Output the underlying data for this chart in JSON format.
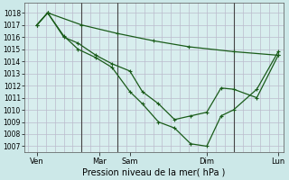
{
  "background_color": "#cce8e8",
  "plot_bg_color": "#d8eeee",
  "grid_color": "#bbbbcc",
  "line_color": "#1a5c1a",
  "marker_color": "#1a5c1a",
  "vline_color": "#444444",
  "ylim_min": 1006.5,
  "ylim_max": 1018.8,
  "yticks": [
    1007,
    1008,
    1009,
    1010,
    1011,
    1012,
    1013,
    1014,
    1015,
    1016,
    1017,
    1018
  ],
  "ytick_fontsize": 5.5,
  "xlabel": "Pression niveau de la mer( hPa )",
  "xlabel_fontsize": 7,
  "xlim_min": -0.1,
  "xlim_max": 7.15,
  "xtick_positions": [
    0.25,
    2.0,
    2.85,
    5.0,
    7.0
  ],
  "xtick_labels": [
    "Ven",
    "Mar",
    "Sam",
    "Dim",
    "Lun"
  ],
  "xtick_fontsize": 6,
  "vlines": [
    1.5,
    2.5,
    5.75
  ],
  "series": [
    {
      "x": [
        0.25,
        0.55,
        1.0,
        1.4,
        1.9,
        2.35,
        2.85,
        3.2,
        3.65,
        4.1,
        4.55,
        5.0,
        5.4,
        5.75,
        6.4,
        7.0
      ],
      "y": [
        1017.0,
        1018.0,
        1016.0,
        1015.5,
        1014.5,
        1013.8,
        1013.2,
        1011.5,
        1010.5,
        1009.2,
        1009.5,
        1009.8,
        1011.8,
        1011.7,
        1011.0,
        1014.5
      ]
    },
    {
      "x": [
        0.25,
        0.55,
        1.0,
        1.4,
        1.9,
        2.35,
        2.85,
        3.2,
        3.65,
        4.1,
        4.55,
        5.0,
        5.4,
        5.75,
        6.4,
        7.0
      ],
      "y": [
        1017.0,
        1018.0,
        1016.1,
        1015.0,
        1014.3,
        1013.5,
        1011.5,
        1010.5,
        1009.0,
        1008.5,
        1007.2,
        1007.0,
        1009.5,
        1010.0,
        1011.7,
        1014.8
      ]
    },
    {
      "x": [
        0.25,
        0.55,
        1.5,
        2.5,
        3.5,
        4.5,
        5.75,
        7.0
      ],
      "y": [
        1017.0,
        1018.0,
        1017.0,
        1016.3,
        1015.7,
        1015.2,
        1014.8,
        1014.5
      ]
    }
  ]
}
